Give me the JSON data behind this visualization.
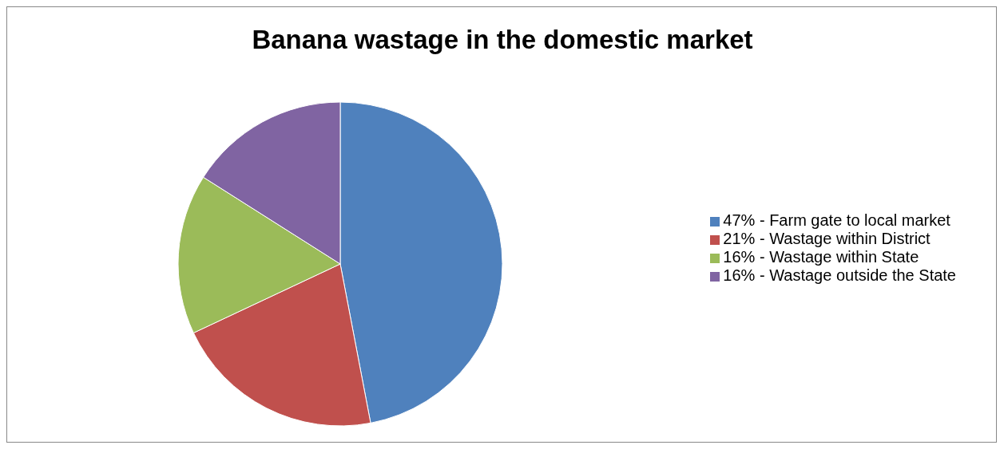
{
  "chart_data": {
    "type": "pie",
    "title": "Banana wastage in the domestic market",
    "categories": [
      "47% - Farm gate to local market",
      "21% - Wastage within District",
      "16% - Wastage within State",
      "16% - Wastage outside the State"
    ],
    "values": [
      47,
      21,
      16,
      16
    ],
    "colors": [
      "#4f81bd",
      "#c0504d",
      "#9bbb59",
      "#8064a2"
    ],
    "legend": "right"
  }
}
